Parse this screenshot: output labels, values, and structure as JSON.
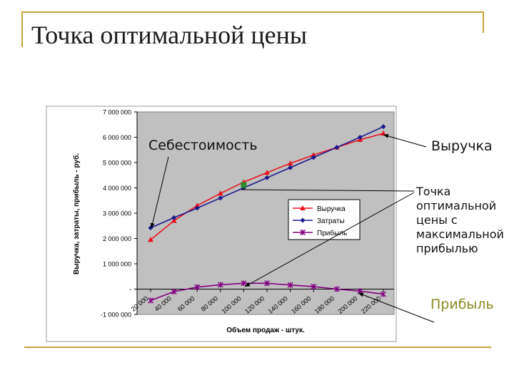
{
  "title": "Точка оптимальной цены",
  "annotations": {
    "cost": "Себестоимость",
    "revenue": "Выручка",
    "optimal_point": "Точка\nоптимальной\nцены с\nмаксимальной\nприбылью",
    "profit": "Прибыль"
  },
  "colors": {
    "plot_bg": "#c0c0c0",
    "revenue": "#e8141e",
    "costs": "#1a1a8c",
    "profit": "#800080",
    "accent": "#c9a33a"
  },
  "chart_data": {
    "type": "line",
    "categories": [
      "20 000",
      "40 000",
      "60 000",
      "80 000",
      "100 000",
      "120 000",
      "140 000",
      "160 000",
      "180 000",
      "200 000",
      "220 000"
    ],
    "series": [
      {
        "name": "Выручка",
        "marker": "triangle",
        "values": [
          1950000,
          2700000,
          3300000,
          3780000,
          4230000,
          4600000,
          4970000,
          5300000,
          5600000,
          5900000,
          6150000
        ]
      },
      {
        "name": "Затраты",
        "marker": "diamond",
        "values": [
          2420000,
          2820000,
          3200000,
          3600000,
          4000000,
          4400000,
          4800000,
          5200000,
          5600000,
          6000000,
          6420000
        ]
      },
      {
        "name": "Прибыль",
        "marker": "star",
        "values": [
          -450000,
          -100000,
          80000,
          170000,
          230000,
          230000,
          160000,
          100000,
          0,
          -80000,
          -200000
        ]
      }
    ],
    "ylim": [
      -1000000,
      7000000
    ],
    "y_ticks": [
      "-1 000 000",
      "-",
      "1 000 000",
      "2 000 000",
      "3 000 000",
      "4 000 000",
      "5 000 000",
      "6 000 000",
      "7 000 000"
    ],
    "xlabel": "Объем продаж - штук.",
    "ylabel": "Выручка, затраты, прибыль - руб.",
    "grid": false,
    "legend_position": "center-right"
  }
}
